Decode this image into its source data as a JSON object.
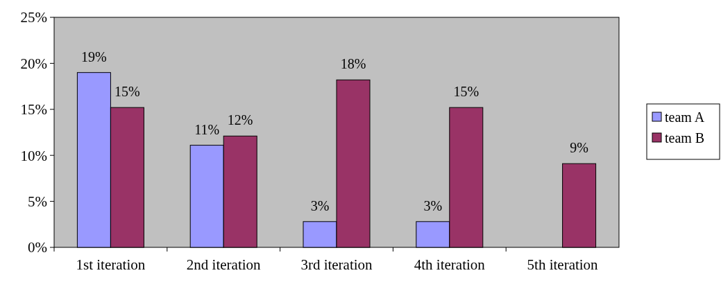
{
  "chart_data": {
    "type": "bar",
    "categories": [
      "1st iteration",
      "2nd iteration",
      "3rd iteration",
      "4th iteration",
      "5th iteration"
    ],
    "series": [
      {
        "name": "team A",
        "color": "#9999ff",
        "values": [
          19,
          11.1,
          2.8,
          2.8,
          null
        ],
        "value_labels": [
          "19%",
          "11%",
          "3%",
          "3%",
          null
        ]
      },
      {
        "name": "team B",
        "color": "#993366",
        "values": [
          15.2,
          12.1,
          18.2,
          15.2,
          9.1
        ],
        "value_labels": [
          "15%",
          "12%",
          "18%",
          "15%",
          "9%"
        ]
      }
    ],
    "ylim": [
      0,
      25
    ],
    "yticks": [
      {
        "value": 0,
        "label": "0%"
      },
      {
        "value": 5,
        "label": "5%"
      },
      {
        "value": 10,
        "label": "10%"
      },
      {
        "value": 15,
        "label": "15%"
      },
      {
        "value": 20,
        "label": "20%"
      },
      {
        "value": 25,
        "label": "25%"
      }
    ],
    "grid": false,
    "legend": "right"
  }
}
